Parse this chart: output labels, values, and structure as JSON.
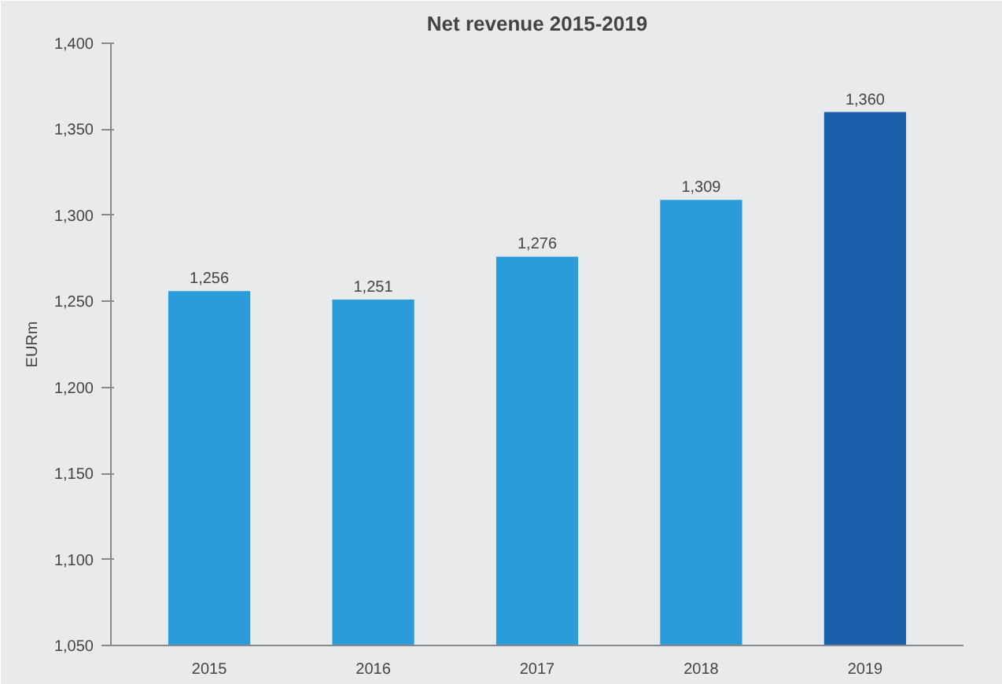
{
  "chart_data": {
    "type": "bar",
    "title": "Net revenue 2015-2019",
    "ylabel": "EURm",
    "categories": [
      "2015",
      "2016",
      "2017",
      "2018",
      "2019"
    ],
    "values": [
      1256,
      1251,
      1276,
      1309,
      1360
    ],
    "value_labels": [
      "1,256",
      "1,251",
      "1,276",
      "1,309",
      "1,360"
    ],
    "colors": [
      "#2b9bd9",
      "#2b9bd9",
      "#2b9bd9",
      "#2b9bd9",
      "#1b5faa"
    ],
    "ylim": [
      1050,
      1400
    ],
    "yticks": [
      {
        "value": 1050,
        "label": "1,050"
      },
      {
        "value": 1100,
        "label": "1,100"
      },
      {
        "value": 1150,
        "label": "1,150"
      },
      {
        "value": 1200,
        "label": "1,200"
      },
      {
        "value": 1250,
        "label": "1,250"
      },
      {
        "value": 1300,
        "label": "1,300"
      },
      {
        "value": 1350,
        "label": "1,350"
      },
      {
        "value": 1400,
        "label": "1,400"
      }
    ],
    "grid": false
  }
}
